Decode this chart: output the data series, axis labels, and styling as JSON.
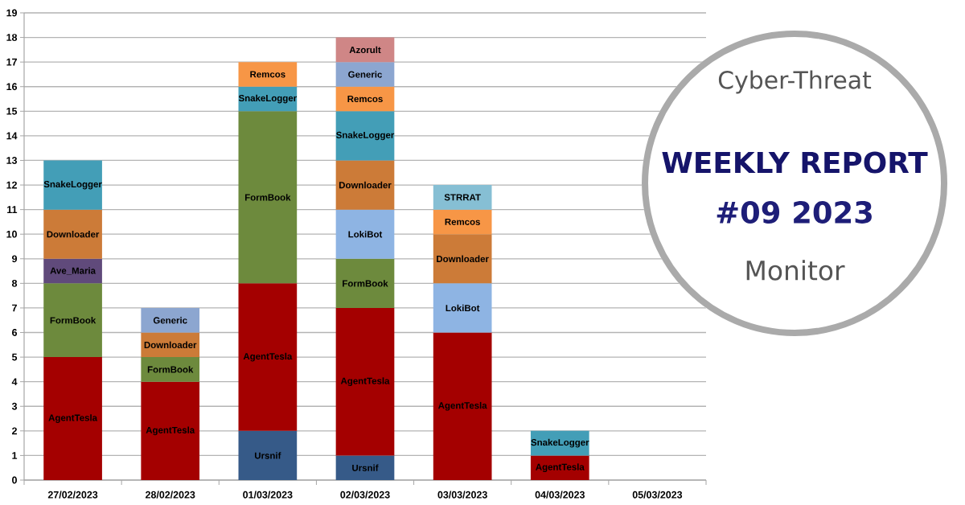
{
  "chart_data": {
    "type": "bar",
    "title": "WEEKLY REPORT",
    "subtitle": "#09 2023",
    "annotations": [
      "Cyber-Threat",
      "Monitor"
    ],
    "categories": [
      "27/02/2023",
      "28/02/2023",
      "01/03/2023",
      "02/03/2023",
      "03/03/2023",
      "04/03/2023",
      "05/03/2023"
    ],
    "stacked": true,
    "series": [
      {
        "name": "Ursnif",
        "color": "#365a88",
        "values": [
          null,
          null,
          2,
          1,
          null,
          null,
          null
        ]
      },
      {
        "name": "AgentTesla",
        "color": "#a40000",
        "values": [
          5,
          4,
          6,
          6,
          6,
          1,
          null
        ]
      },
      {
        "name": "FormBook",
        "color": "#6d8a3d",
        "values": [
          3,
          1,
          7,
          2,
          null,
          null,
          null
        ]
      },
      {
        "name": "Ave_Maria",
        "color": "#604a7b",
        "values": [
          1,
          null,
          null,
          null,
          null,
          null,
          null
        ]
      },
      {
        "name": "LokiBot",
        "color": "#8eb4e3",
        "values": [
          null,
          null,
          null,
          2,
          2,
          null,
          null
        ]
      },
      {
        "name": "Downloader",
        "color": "#cc7b38",
        "values": [
          2,
          1,
          null,
          2,
          2,
          null,
          null
        ]
      },
      {
        "name": "SnakeLogger",
        "color": "#439eb7",
        "values": [
          2,
          null,
          1,
          2,
          null,
          1,
          null
        ]
      },
      {
        "name": "Remcos",
        "color": "#f79646",
        "values": [
          null,
          null,
          1,
          1,
          1,
          null,
          null
        ]
      },
      {
        "name": "STRRAT",
        "color": "#86bfd4",
        "values": [
          null,
          null,
          null,
          null,
          1,
          null,
          null
        ]
      },
      {
        "name": "Generic",
        "color": "#8ca6d0",
        "values": [
          null,
          1,
          null,
          1,
          null,
          null,
          null
        ]
      },
      {
        "name": "Azorult",
        "color": "#cf8686",
        "values": [
          null,
          null,
          null,
          1,
          null,
          null,
          null
        ]
      }
    ],
    "ylim": [
      0,
      19
    ],
    "yticks": [
      0,
      1,
      2,
      3,
      4,
      5,
      6,
      7,
      8,
      9,
      10,
      11,
      12,
      13,
      14,
      15,
      16,
      17,
      18,
      19
    ],
    "grid": "y"
  }
}
